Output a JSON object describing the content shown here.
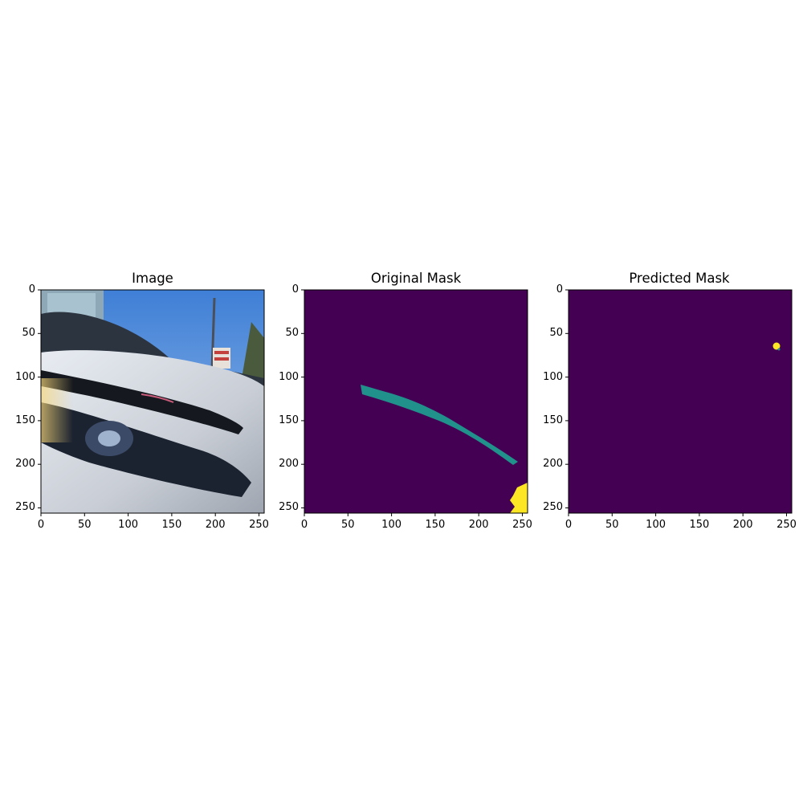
{
  "panels": [
    {
      "title": "Image"
    },
    {
      "title": "Original Mask"
    },
    {
      "title": "Predicted Mask"
    }
  ],
  "axes": {
    "xticks": [
      "0",
      "50",
      "100",
      "150",
      "200",
      "250"
    ],
    "yticks": [
      "0",
      "50",
      "100",
      "150",
      "200",
      "250"
    ],
    "xvalues": [
      0,
      50,
      100,
      150,
      200,
      250
    ],
    "yvalues": [
      0,
      50,
      100,
      150,
      200,
      250
    ],
    "xlim": [
      0,
      256
    ],
    "ylim": [
      256,
      0
    ]
  },
  "colors": {
    "mask_background": "#440154",
    "mask_class_1": "#21918c",
    "mask_class_2": "#fde725"
  }
}
